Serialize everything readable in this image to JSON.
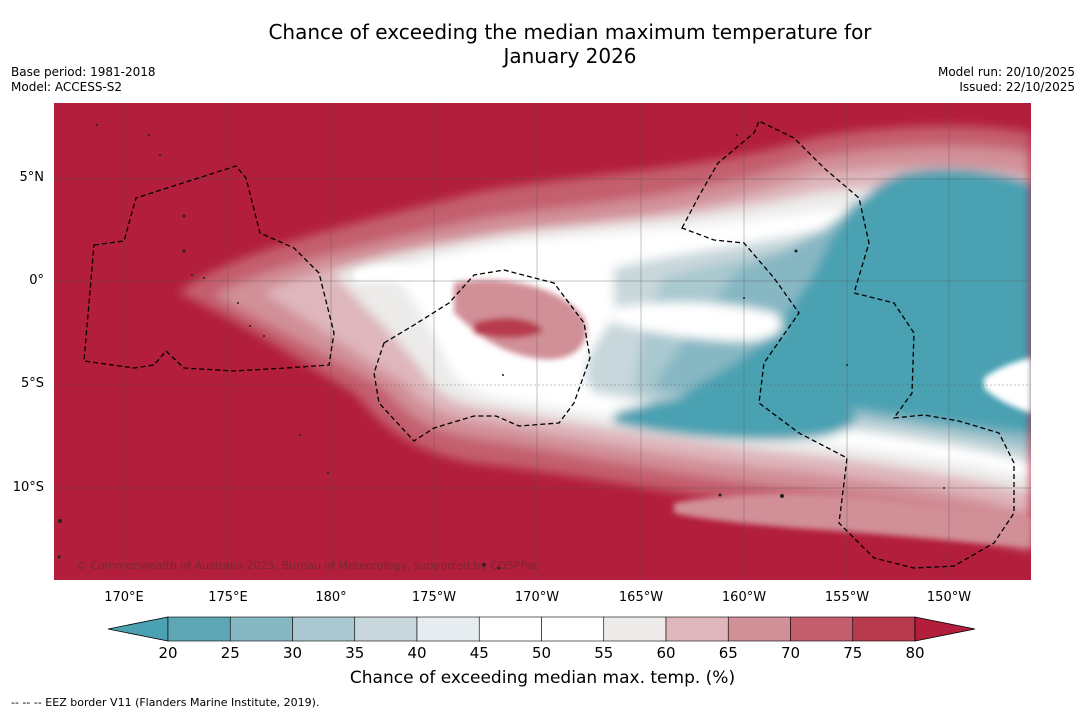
{
  "title_line1": "Chance of exceeding the median maximum temperature for",
  "title_line2": "January 2026",
  "base_period": "Base period: 1981-2018",
  "model": "Model: ACCESS-S2",
  "model_run": "Model run: 20/10/2025",
  "issued": "Issued: 22/10/2025",
  "copyright": "© Commonwealth of Australia 2025, Bureau of Meteorology, supported by COSPPac",
  "lat_labels": [
    "5°N",
    "0°",
    "5°S",
    "10°S"
  ],
  "lon_labels": [
    "170°E",
    "175°E",
    "180°",
    "175°W",
    "170°W",
    "165°W",
    "160°W",
    "155°W",
    "150°W"
  ],
  "colorbar": {
    "ticks": [
      "20",
      "25",
      "30",
      "35",
      "40",
      "45",
      "50",
      "55",
      "60",
      "65",
      "70",
      "75",
      "80"
    ],
    "colors": [
      "#5ea6b4",
      "#86b7c3",
      "#a9c8cf",
      "#c8d7db",
      "#e6ecef",
      "#ffffff",
      "#ffffff",
      "#ecebea",
      "#deb6bc",
      "#d18f97",
      "#c45f6e",
      "#b73a4d"
    ],
    "under_color": "#4aa1b2",
    "over_color": "#b21e3b",
    "label": "Chance of exceeding median max. temp. (%)"
  },
  "footnote": "--  --  -- EEZ border V11 (Flanders Marine Institute, 2019)."
}
